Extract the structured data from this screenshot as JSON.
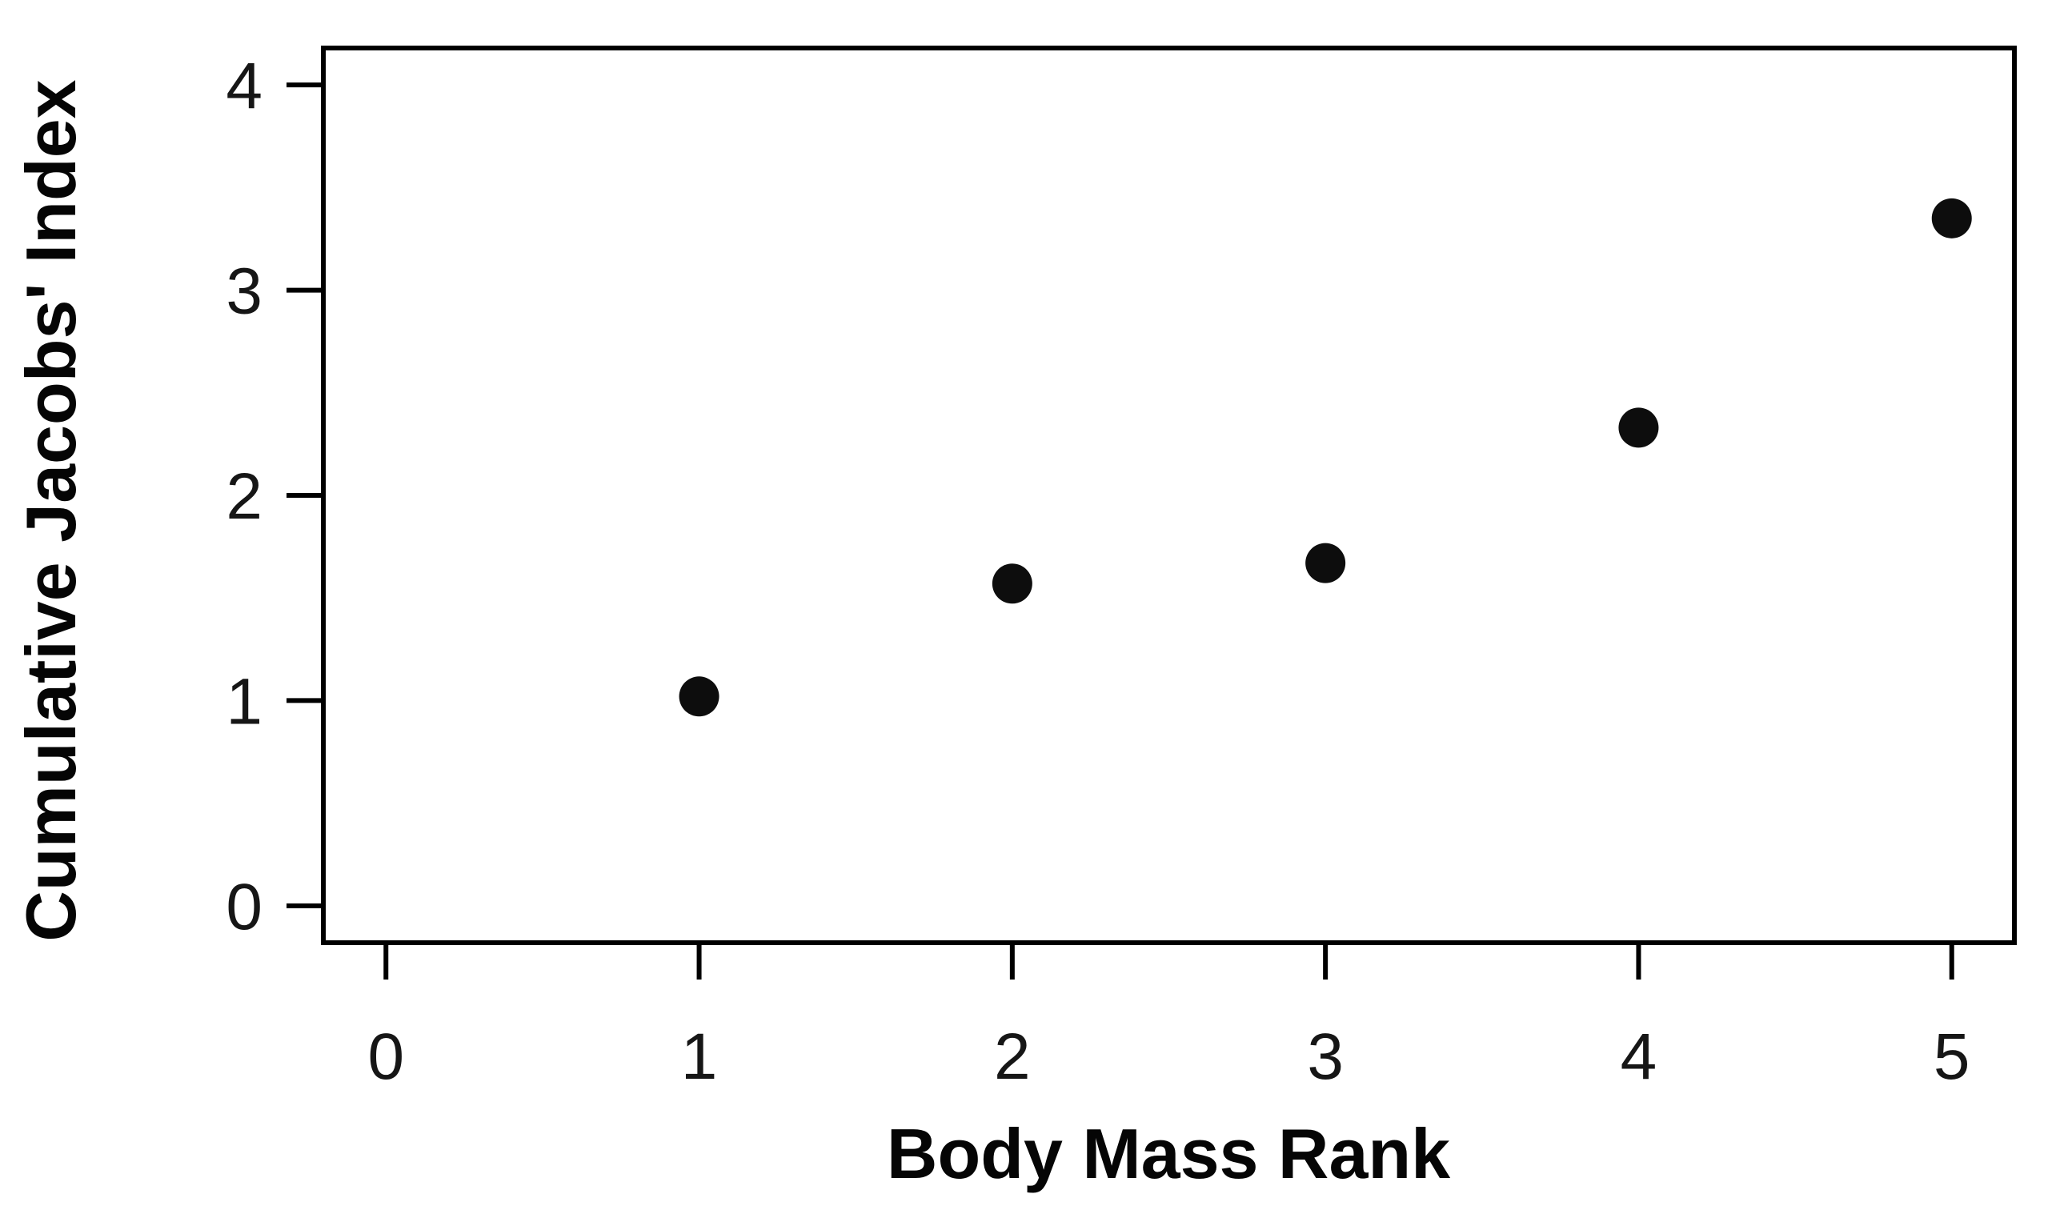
{
  "figure": {
    "background": "#ffffff",
    "axis_color": "#000000",
    "tick_label_color": "#161616",
    "point_color": "#0d0d0d"
  },
  "chart_data": {
    "type": "scatter",
    "title": "",
    "xlabel": "Body Mass Rank",
    "ylabel": "Cumulative Jacobs' Index",
    "x": [
      1,
      2,
      3,
      4,
      5
    ],
    "y": [
      1.02,
      1.57,
      1.67,
      2.33,
      3.35
    ],
    "x_ticks": [
      "0",
      "1",
      "2",
      "3",
      "4",
      "5"
    ],
    "x_tick_values": [
      0,
      1,
      2,
      3,
      4,
      5
    ],
    "y_ticks": [
      "0",
      "1",
      "2",
      "3",
      "4"
    ],
    "y_tick_values": [
      0,
      1,
      2,
      3,
      4
    ],
    "xlim": [
      -0.2,
      5.2
    ],
    "ylim": [
      -0.18,
      4.18
    ],
    "grid": false,
    "legend": "none",
    "marker": "filled-circle",
    "marker_radius_px": 25
  }
}
